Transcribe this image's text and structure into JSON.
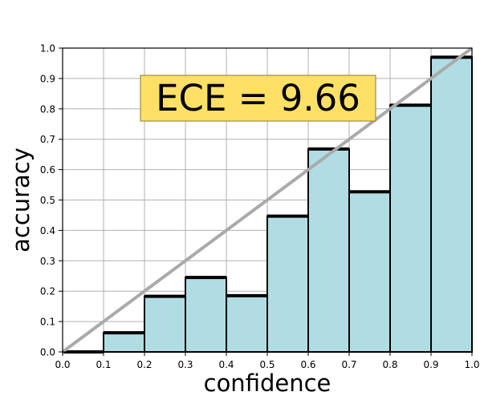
{
  "chart_data": {
    "type": "bar",
    "bin_edges": [
      0.0,
      0.1,
      0.2,
      0.3,
      0.4,
      0.5,
      0.6,
      0.7,
      0.8,
      0.9,
      1.0
    ],
    "values": [
      0.0,
      0.063,
      0.183,
      0.245,
      0.185,
      0.447,
      0.668,
      0.527,
      0.812,
      0.97
    ],
    "xlabel": "confidence",
    "ylabel": "accuracy",
    "xlim": [
      0.0,
      1.0
    ],
    "ylim": [
      0.0,
      1.0
    ],
    "xticks": [
      "0.0",
      "0.1",
      "0.2",
      "0.3",
      "0.4",
      "0.5",
      "0.6",
      "0.7",
      "0.8",
      "0.9",
      "1.0"
    ],
    "yticks": [
      "0.0",
      "0.1",
      "0.2",
      "0.3",
      "0.4",
      "0.5",
      "0.6",
      "0.7",
      "0.8",
      "0.9",
      "1.0"
    ],
    "grid": true,
    "annotation": "ECE = 9.66",
    "diagonal": true,
    "colors": {
      "bar_fill": "#b0dde3",
      "bar_edge": "#000000",
      "diagonal": "#aaaaaa",
      "annotation_bg": "#ffe066",
      "grid": "#b0b0b0"
    }
  }
}
